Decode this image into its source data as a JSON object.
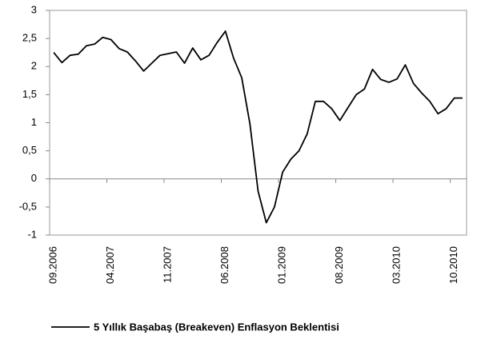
{
  "chart_data": {
    "type": "line",
    "categories": [
      "09.2006",
      null,
      null,
      null,
      null,
      null,
      null,
      "04.2007",
      null,
      null,
      null,
      null,
      null,
      null,
      "11.2007",
      null,
      null,
      null,
      null,
      null,
      null,
      "06.2008",
      null,
      null,
      null,
      null,
      null,
      null,
      "01.2009",
      null,
      null,
      null,
      null,
      null,
      null,
      "08.2009",
      null,
      null,
      null,
      null,
      null,
      null,
      "03.2010",
      null,
      null,
      null,
      null,
      null,
      null,
      "10.2010",
      null
    ],
    "series": [
      {
        "name": "5 Yıllık Başabaş (Breakeven) Enflasyon Beklentisi",
        "color": "#000000",
        "values": [
          2.25,
          2.07,
          2.2,
          2.22,
          2.37,
          2.4,
          2.52,
          2.48,
          2.32,
          2.26,
          2.1,
          1.92,
          2.06,
          2.2,
          2.23,
          2.26,
          2.06,
          2.33,
          2.12,
          2.2,
          2.43,
          2.63,
          2.15,
          1.8,
          0.98,
          -0.22,
          -0.78,
          -0.5,
          0.12,
          0.35,
          0.5,
          0.8,
          1.38,
          1.38,
          1.25,
          1.04,
          1.27,
          1.5,
          1.6,
          1.95,
          1.77,
          1.72,
          1.78,
          2.03,
          1.7,
          1.53,
          1.38,
          1.16,
          1.25,
          1.44,
          1.44
        ]
      }
    ],
    "ylim": [
      -1,
      3
    ],
    "yticks": [
      3,
      {
        "value": 2.5,
        "label": "2,5"
      },
      2,
      {
        "value": 1.5,
        "label": "1,5"
      },
      1,
      {
        "value": 0.5,
        "label": "0,5"
      },
      0,
      {
        "value": -0.5,
        "label": "-0,5"
      },
      -1
    ],
    "grid": false,
    "legend": "bottom"
  }
}
